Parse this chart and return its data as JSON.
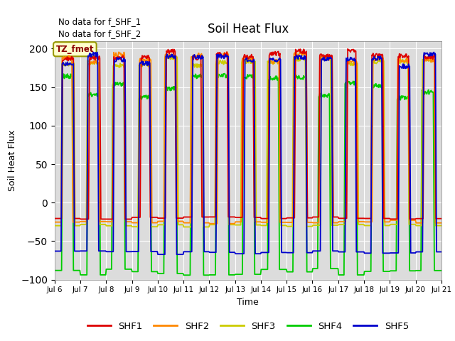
{
  "title": "Soil Heat Flux",
  "ylabel": "Soil Heat Flux",
  "xlabel": "Time",
  "ylim": [
    -100,
    210
  ],
  "yticks": [
    -100,
    -50,
    0,
    50,
    100,
    150,
    200
  ],
  "text_no_data_1": "No data for f_SHF_1",
  "text_no_data_2": "No data for f_SHF_2",
  "tz_label": "TZ_fmet",
  "legend": [
    "SHF1",
    "SHF2",
    "SHF3",
    "SHF4",
    "SHF5"
  ],
  "colors": {
    "SHF1": "#dd0000",
    "SHF2": "#ff8800",
    "SHF3": "#cccc00",
    "SHF4": "#00cc00",
    "SHF5": "#0000cc"
  },
  "bg_color": "#dcdcdc",
  "xtick_labels": [
    "Jul 6",
    "Jul 7",
    "Jul 8",
    "Jul 9",
    "Jul 10",
    "Jul 11",
    "Jul 12",
    "Jul 13",
    "Jul 14",
    "Jul 15",
    "Jul 16",
    "Jul 17",
    "Jul 18",
    "Jul 19",
    "Jul 20",
    "Jul 21"
  ],
  "xtick_positions": [
    6,
    7,
    8,
    9,
    10,
    11,
    12,
    13,
    14,
    15,
    16,
    17,
    18,
    19,
    20,
    21
  ]
}
